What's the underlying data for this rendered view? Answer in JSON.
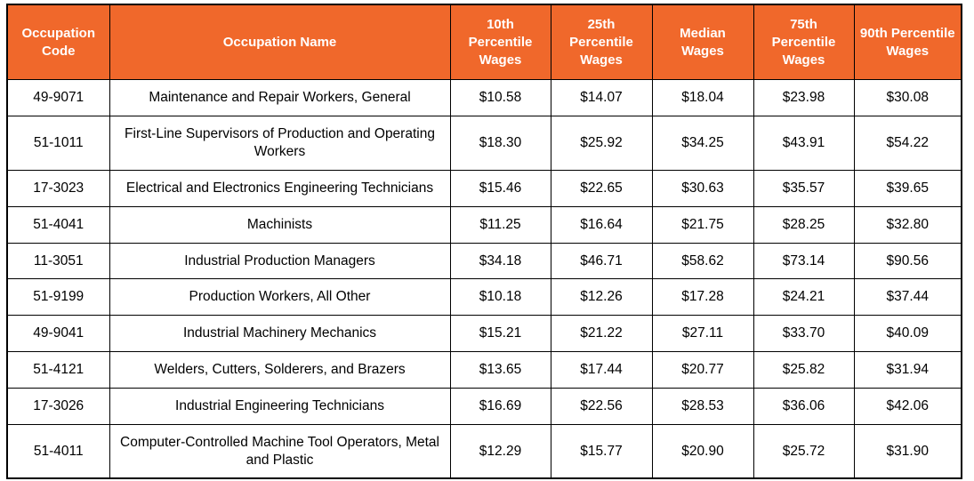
{
  "chart_data": {
    "type": "table",
    "title": "",
    "columns": [
      "Occupation Code",
      "Occupation Name",
      "10th Percentile Wages",
      "25th Percentile Wages",
      "Median Wages",
      "75th Percentile Wages",
      "90th Percentile Wages"
    ],
    "rows": [
      [
        "49-9071",
        "Maintenance and Repair Workers, General",
        "$10.58",
        "$14.07",
        "$18.04",
        "$23.98",
        "$30.08"
      ],
      [
        "51-1011",
        "First-Line Supervisors of Production and Operating Workers",
        "$18.30",
        "$25.92",
        "$34.25",
        "$43.91",
        "$54.22"
      ],
      [
        "17-3023",
        "Electrical and Electronics Engineering Technicians",
        "$15.46",
        "$22.65",
        "$30.63",
        "$35.57",
        "$39.65"
      ],
      [
        "51-4041",
        "Machinists",
        "$11.25",
        "$16.64",
        "$21.75",
        "$28.25",
        "$32.80"
      ],
      [
        "11-3051",
        "Industrial Production Managers",
        "$34.18",
        "$46.71",
        "$58.62",
        "$73.14",
        "$90.56"
      ],
      [
        "51-9199",
        "Production Workers, All Other",
        "$10.18",
        "$12.26",
        "$17.28",
        "$24.21",
        "$37.44"
      ],
      [
        "49-9041",
        "Industrial Machinery Mechanics",
        "$15.21",
        "$21.22",
        "$27.11",
        "$33.70",
        "$40.09"
      ],
      [
        "51-4121",
        "Welders, Cutters, Solderers, and Brazers",
        "$13.65",
        "$17.44",
        "$20.77",
        "$25.82",
        "$31.94"
      ],
      [
        "17-3026",
        "Industrial Engineering Technicians",
        "$16.69",
        "$22.56",
        "$28.53",
        "$36.06",
        "$42.06"
      ],
      [
        "51-4011",
        "Computer-Controlled Machine Tool Operators, Metal and Plastic",
        "$12.29",
        "$15.77",
        "$20.90",
        "$25.72",
        "$31.90"
      ]
    ],
    "colors": {
      "header_bg": "#F0682B",
      "header_text": "#FFFFFF",
      "body_bg": "#FFFFFF",
      "body_text": "#000000",
      "border": "#000000"
    },
    "layout": {
      "grid": true,
      "header_row": true
    }
  }
}
